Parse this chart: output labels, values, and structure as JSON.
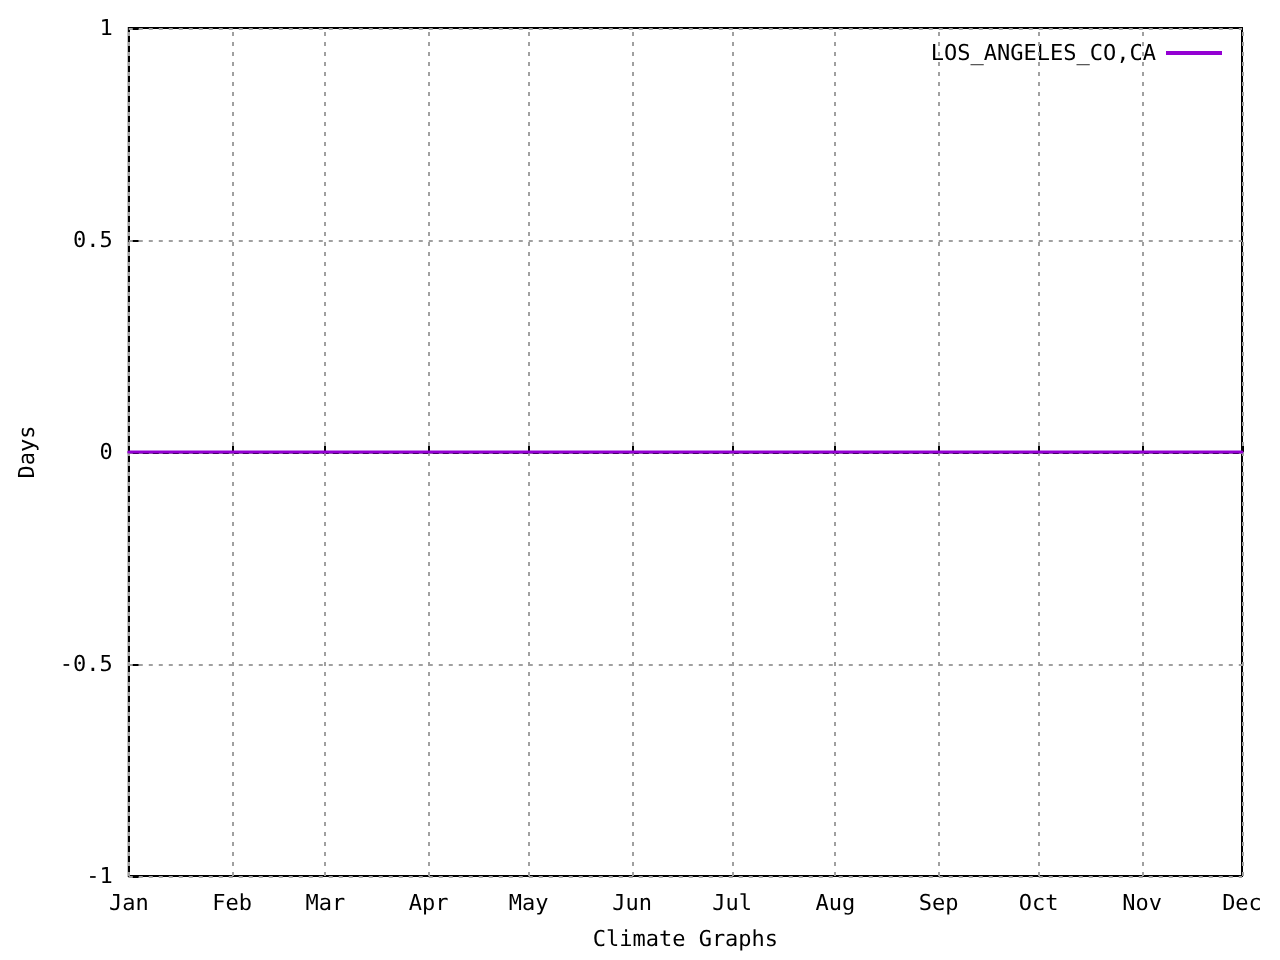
{
  "chart_data": {
    "type": "line",
    "xlabel": "Climate Graphs",
    "ylabel": "Days",
    "x": [
      "--01-01",
      "--02-01",
      "--03-01",
      "--04-01",
      "--05-01",
      "--06-01",
      "--07-01",
      "--08-01",
      "--09-01",
      "--10-01",
      "--11-01",
      "--12-01"
    ],
    "series": [
      {
        "name": "LOS_ANGELES_CO,CA",
        "color": "#9400d3",
        "values": [
          0,
          0,
          0,
          0,
          0,
          0,
          0,
          0,
          0,
          0,
          0,
          0
        ]
      }
    ],
    "xlim": [
      "--01-01",
      "--12-01"
    ],
    "xticks": [
      {
        "value": "--01-01",
        "label": "Jan"
      },
      {
        "value": "--02-01",
        "label": "Feb"
      },
      {
        "value": "--03-01",
        "label": "Mar"
      },
      {
        "value": "--04-01",
        "label": "Apr"
      },
      {
        "value": "--05-01",
        "label": "May"
      },
      {
        "value": "--06-01",
        "label": "Jun"
      },
      {
        "value": "--07-01",
        "label": "Jul"
      },
      {
        "value": "--08-01",
        "label": "Aug"
      },
      {
        "value": "--09-01",
        "label": "Sep"
      },
      {
        "value": "--10-01",
        "label": "Oct"
      },
      {
        "value": "--11-01",
        "label": "Nov"
      },
      {
        "value": "--12-01",
        "label": "Dec"
      }
    ],
    "ylim": [
      -1,
      1
    ],
    "yticks": [
      -1,
      -0.5,
      0,
      0.5,
      1
    ],
    "grid": true,
    "legend": "top right",
    "marker": "none",
    "line_style": "solid"
  }
}
